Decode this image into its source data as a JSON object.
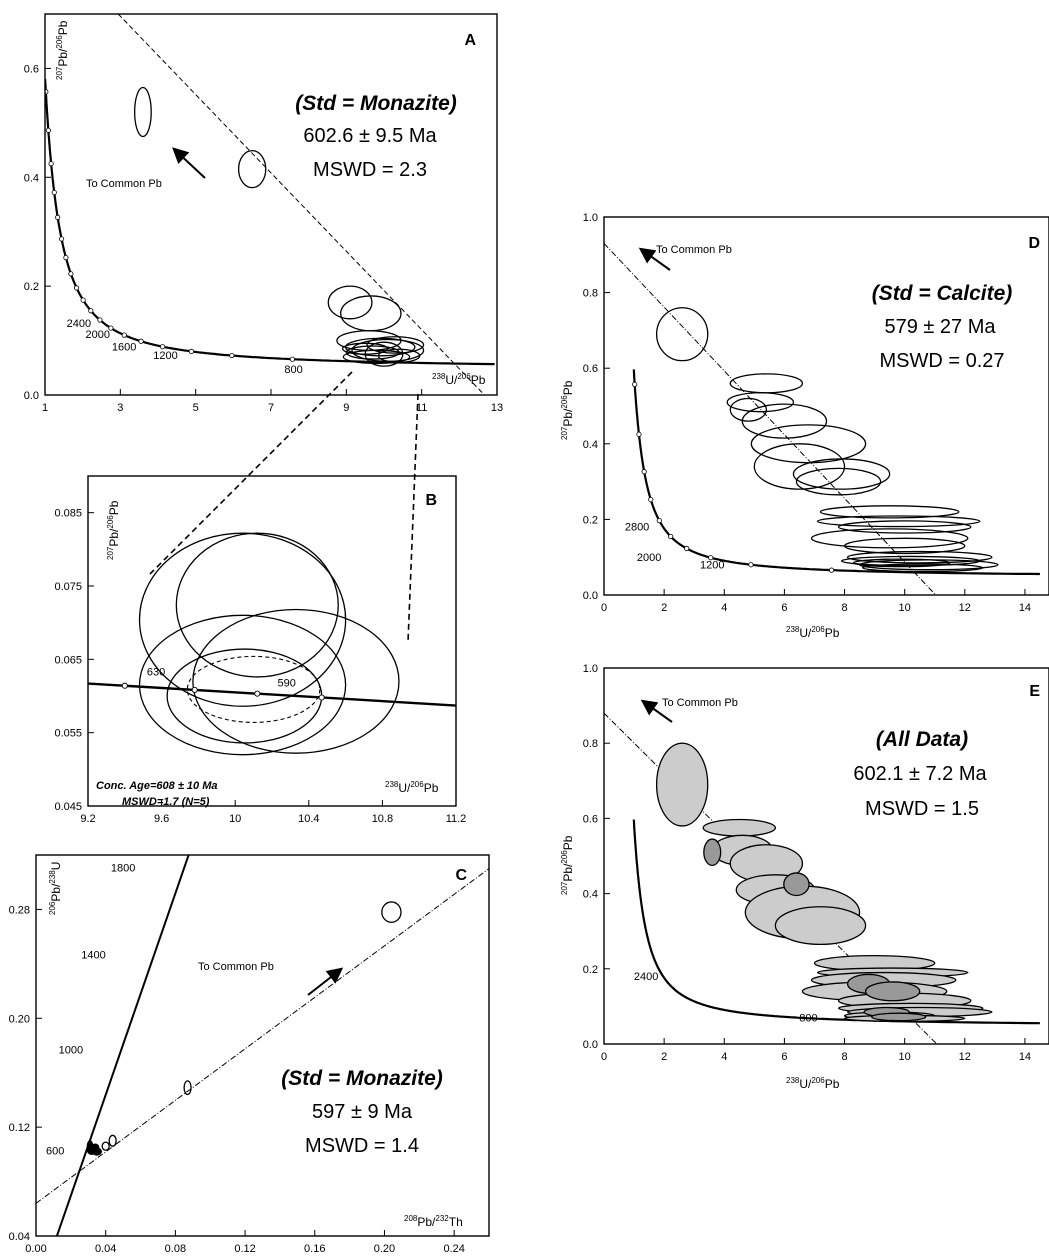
{
  "chart_data": [
    {
      "id": "A",
      "type": "scatter",
      "panel_label": "A",
      "xlim": [
        1,
        13
      ],
      "ylim": [
        0,
        0.7
      ],
      "xticks": [
        1,
        3,
        5,
        7,
        9,
        11,
        13
      ],
      "yticks": [
        0.0,
        0.2,
        0.4,
        0.6
      ],
      "xlabel_html": [
        "238",
        "U/",
        "206",
        "Pb"
      ],
      "ylabel_html": [
        "207",
        "Pb/",
        "206",
        "Pb"
      ],
      "standard": "(Std = Monazite)",
      "age": "602.6 ± 9.5 Ma",
      "mswd": "MSWD = 2.3",
      "common_pb_label": "To Common Pb",
      "concordia_labels": [
        {
          "text": "2400",
          "x": 1.9,
          "y": 0.125
        },
        {
          "text": "2000",
          "x": 2.4,
          "y": 0.105
        },
        {
          "text": "1600",
          "x": 3.1,
          "y": 0.082
        },
        {
          "text": "1200",
          "x": 4.2,
          "y": 0.066
        },
        {
          "text": "800",
          "x": 7.6,
          "y": 0.04
        }
      ],
      "regression": {
        "x0": 1,
        "y0": 0.84,
        "slope": -0.072
      },
      "ellipses": [
        {
          "x": 3.6,
          "y": 0.52,
          "rx": 0.22,
          "ry": 0.045,
          "fill": "none"
        },
        {
          "x": 6.5,
          "y": 0.415,
          "rx": 0.36,
          "ry": 0.034,
          "fill": "none"
        },
        {
          "x": 9.1,
          "y": 0.17,
          "rx": 0.58,
          "ry": 0.03,
          "fill": "none"
        },
        {
          "x": 9.65,
          "y": 0.15,
          "rx": 0.8,
          "ry": 0.032,
          "fill": "none"
        },
        {
          "x": 9.6,
          "y": 0.1,
          "rx": 0.85,
          "ry": 0.018,
          "fill": "none"
        },
        {
          "x": 9.9,
          "y": 0.088,
          "rx": 0.92,
          "ry": 0.016,
          "fill": "none"
        },
        {
          "x": 10.1,
          "y": 0.082,
          "rx": 0.95,
          "ry": 0.02,
          "fill": "none"
        },
        {
          "x": 9.7,
          "y": 0.078,
          "rx": 0.7,
          "ry": 0.012,
          "fill": "none"
        },
        {
          "x": 10.3,
          "y": 0.092,
          "rx": 0.75,
          "ry": 0.015,
          "fill": "none"
        },
        {
          "x": 9.8,
          "y": 0.07,
          "rx": 0.88,
          "ry": 0.012,
          "fill": "none"
        },
        {
          "x": 10.0,
          "y": 0.075,
          "rx": 0.5,
          "ry": 0.022,
          "fill": "none"
        },
        {
          "x": 9.5,
          "y": 0.085,
          "rx": 0.6,
          "ry": 0.01,
          "fill": "none"
        },
        {
          "x": 10.4,
          "y": 0.072,
          "rx": 0.55,
          "ry": 0.012,
          "fill": "none"
        }
      ]
    },
    {
      "id": "B",
      "type": "scatter",
      "panel_label": "B",
      "xlim": [
        9.2,
        11.2
      ],
      "ylim": [
        0.045,
        0.09
      ],
      "xticks": [
        9.2,
        9.6,
        10.0,
        10.4,
        10.8,
        11.2
      ],
      "yticks": [
        0.045,
        0.055,
        0.065,
        0.075,
        0.085
      ],
      "xlabel_html": [
        "238",
        "U/",
        "206",
        "Pb"
      ],
      "ylabel_html": [
        "207",
        "Pb/",
        "206",
        "Pb"
      ],
      "conc_age": "Conc. Age=608 ± 10 Ma",
      "conc_mswd": "MSWD=1.7 (N=5)",
      "concordia_labels": [
        {
          "text": "630",
          "x": 9.57,
          "y": 0.0628
        },
        {
          "text": "590",
          "x": 10.28,
          "y": 0.0613
        }
      ],
      "concordia_line": {
        "x0": 9.2,
        "y0": 0.0617,
        "x1": 11.2,
        "y1": 0.0587
      },
      "concordia_markers": [
        9.4,
        9.78,
        10.12,
        10.47
      ],
      "ellipses": [
        {
          "x": 10.04,
          "y": 0.0704,
          "rx": 0.56,
          "ry": 0.0118,
          "fill": "none"
        },
        {
          "x": 10.12,
          "y": 0.0724,
          "rx": 0.44,
          "ry": 0.0098,
          "fill": "none"
        },
        {
          "x": 10.04,
          "y": 0.0615,
          "rx": 0.56,
          "ry": 0.0095,
          "fill": "none"
        },
        {
          "x": 10.33,
          "y": 0.062,
          "rx": 0.56,
          "ry": 0.0098,
          "fill": "none"
        },
        {
          "x": 10.05,
          "y": 0.06,
          "rx": 0.42,
          "ry": 0.0064,
          "fill": "none"
        }
      ],
      "mean_ellipse": {
        "x": 10.1,
        "y": 0.0609,
        "rx": 0.36,
        "ry": 0.0045
      }
    },
    {
      "id": "C",
      "type": "scatter",
      "panel_label": "C",
      "xlim": [
        0.0,
        0.26
      ],
      "ylim": [
        0.04,
        0.32
      ],
      "xticks": [
        0.0,
        0.04,
        0.08,
        0.12,
        0.16,
        0.2,
        0.24
      ],
      "xtick_labels": [
        "0.00",
        "0.04",
        "0.08",
        "0.12",
        "0.16",
        "0.20",
        "0.24"
      ],
      "yticks": [
        0.04,
        0.12,
        0.2,
        0.28
      ],
      "ytick_labels": [
        "0.04",
        "0.12",
        "0.20",
        "0.28"
      ],
      "xlabel_html": [
        "208",
        "Pb/",
        "232",
        "Th"
      ],
      "ylabel_html": [
        "206",
        "Pb/",
        "238",
        "U"
      ],
      "standard": "(Std = Monazite)",
      "age": "597 ± 9 Ma",
      "mswd": "MSWD = 1.4",
      "common_pb_label": "To Common Pb",
      "concordia_labels": [
        {
          "text": "1800",
          "x": 0.05,
          "y": 0.308
        },
        {
          "text": "1400",
          "x": 0.033,
          "y": 0.244
        },
        {
          "text": "1000",
          "x": 0.02,
          "y": 0.174
        },
        {
          "text": "600",
          "x": 0.011,
          "y": 0.1
        }
      ],
      "concordia_line": {
        "x0": 0.012,
        "y0": 0.04,
        "x1": 0.093,
        "y1": 0.34
      },
      "regression": {
        "x0": 0.0,
        "y0": 0.064,
        "x1": 0.26,
        "y1": 0.31
      },
      "ellipses": [
        {
          "x": 0.204,
          "y": 0.278,
          "rx": 0.0055,
          "ry": 0.0075,
          "fill": "none"
        },
        {
          "x": 0.087,
          "y": 0.149,
          "rx": 0.002,
          "ry": 0.005,
          "fill": "none"
        },
        {
          "x": 0.044,
          "y": 0.11,
          "rx": 0.002,
          "ry": 0.004,
          "fill": "none"
        },
        {
          "x": 0.04,
          "y": 0.106,
          "rx": 0.002,
          "ry": 0.003,
          "fill": "none"
        },
        {
          "x": 0.032,
          "y": 0.103,
          "rx": 0.0025,
          "ry": 0.003,
          "fill": "#000"
        },
        {
          "x": 0.034,
          "y": 0.105,
          "rx": 0.002,
          "ry": 0.0025,
          "fill": "#000"
        },
        {
          "x": 0.035,
          "y": 0.102,
          "rx": 0.0025,
          "ry": 0.0025,
          "fill": "#000"
        },
        {
          "x": 0.031,
          "y": 0.106,
          "rx": 0.0015,
          "ry": 0.004,
          "fill": "#000"
        }
      ]
    },
    {
      "id": "D",
      "type": "scatter",
      "panel_label": "D",
      "xlim": [
        0,
        14.8
      ],
      "ylim": [
        0,
        1.0
      ],
      "xticks": [
        0,
        2,
        4,
        6,
        8,
        10,
        12,
        14
      ],
      "yticks": [
        0.0,
        0.2,
        0.4,
        0.6,
        0.8,
        1.0
      ],
      "ytick_labels": [
        "0.0",
        "0.2",
        "0.4",
        "0.6",
        "0.8",
        "1.0"
      ],
      "xlabel_html": [
        "238",
        "U/",
        "206",
        "Pb"
      ],
      "ylabel_html": [
        "207",
        "Pb/",
        "206",
        "Pb"
      ],
      "standard": "(Std = Calcite)",
      "age": "579 ± 27 Ma",
      "mswd": "MSWD = 0.27",
      "common_pb_label": "To Common Pb",
      "concordia_labels": [
        {
          "text": "2800",
          "x": 1.1,
          "y": 0.17
        },
        {
          "text": "2000",
          "x": 1.5,
          "y": 0.09
        },
        {
          "text": "1200",
          "x": 3.6,
          "y": 0.07
        }
      ],
      "regression": {
        "x0": 0,
        "y0": 0.93,
        "slope": -0.0843
      },
      "ellipses": [
        {
          "x": 2.6,
          "y": 0.69,
          "rx": 0.85,
          "ry": 0.07,
          "fill": "none"
        },
        {
          "x": 5.4,
          "y": 0.56,
          "rx": 1.2,
          "ry": 0.025,
          "fill": "none"
        },
        {
          "x": 5.2,
          "y": 0.51,
          "rx": 1.1,
          "ry": 0.025,
          "fill": "none"
        },
        {
          "x": 4.8,
          "y": 0.49,
          "rx": 0.6,
          "ry": 0.03,
          "fill": "none"
        },
        {
          "x": 6.0,
          "y": 0.46,
          "rx": 1.4,
          "ry": 0.045,
          "fill": "none"
        },
        {
          "x": 6.8,
          "y": 0.4,
          "rx": 1.9,
          "ry": 0.05,
          "fill": "none"
        },
        {
          "x": 6.5,
          "y": 0.34,
          "rx": 1.5,
          "ry": 0.06,
          "fill": "none"
        },
        {
          "x": 7.9,
          "y": 0.32,
          "rx": 1.6,
          "ry": 0.04,
          "fill": "none"
        },
        {
          "x": 7.8,
          "y": 0.3,
          "rx": 1.4,
          "ry": 0.035,
          "fill": "none"
        },
        {
          "x": 9.5,
          "y": 0.22,
          "rx": 2.3,
          "ry": 0.016,
          "fill": "none"
        },
        {
          "x": 9.8,
          "y": 0.195,
          "rx": 2.7,
          "ry": 0.014,
          "fill": "none"
        },
        {
          "x": 10.0,
          "y": 0.18,
          "rx": 2.2,
          "ry": 0.016,
          "fill": "none"
        },
        {
          "x": 9.5,
          "y": 0.15,
          "rx": 2.6,
          "ry": 0.025,
          "fill": "none"
        },
        {
          "x": 10.0,
          "y": 0.13,
          "rx": 2.0,
          "ry": 0.02,
          "fill": "none"
        },
        {
          "x": 10.5,
          "y": 0.1,
          "rx": 2.4,
          "ry": 0.015,
          "fill": "none"
        },
        {
          "x": 10.2,
          "y": 0.09,
          "rx": 2.3,
          "ry": 0.012,
          "fill": "none"
        },
        {
          "x": 10.8,
          "y": 0.08,
          "rx": 2.3,
          "ry": 0.013,
          "fill": "none"
        },
        {
          "x": 9.9,
          "y": 0.085,
          "rx": 1.6,
          "ry": 0.01,
          "fill": "none"
        },
        {
          "x": 10.6,
          "y": 0.072,
          "rx": 2.0,
          "ry": 0.01,
          "fill": "none"
        }
      ]
    },
    {
      "id": "E",
      "type": "scatter",
      "panel_label": "E",
      "xlim": [
        0,
        14.8
      ],
      "ylim": [
        0,
        1.0
      ],
      "xticks": [
        0,
        2,
        4,
        6,
        8,
        10,
        12,
        14
      ],
      "yticks": [
        0.0,
        0.2,
        0.4,
        0.6,
        0.8,
        1.0
      ],
      "ytick_labels": [
        "0.0",
        "0.2",
        "0.4",
        "0.6",
        "0.8",
        "1.0"
      ],
      "xlabel_html": [
        "238",
        "U/",
        "206",
        "Pb"
      ],
      "ylabel_html": [
        "207",
        "Pb/",
        "206",
        "Pb"
      ],
      "standard": "(All Data)",
      "age": "602.1 ± 7.2 Ma",
      "mswd": "MSWD = 1.5",
      "common_pb_label": "To Common Pb",
      "concordia_labels": [
        {
          "text": "2400",
          "x": 1.4,
          "y": 0.17
        },
        {
          "text": "800",
          "x": 6.8,
          "y": 0.06
        }
      ],
      "regression": {
        "x0": 0,
        "y0": 0.88,
        "slope": -0.0795
      },
      "ellipses": [
        {
          "x": 2.6,
          "y": 0.69,
          "rx": 0.85,
          "ry": 0.11,
          "fill": "#cccccc"
        },
        {
          "x": 4.5,
          "y": 0.575,
          "rx": 1.2,
          "ry": 0.022,
          "fill": "#cccccc"
        },
        {
          "x": 4.6,
          "y": 0.515,
          "rx": 1.0,
          "ry": 0.04,
          "fill": "#cccccc"
        },
        {
          "x": 5.4,
          "y": 0.48,
          "rx": 1.2,
          "ry": 0.05,
          "fill": "#cccccc"
        },
        {
          "x": 5.7,
          "y": 0.41,
          "rx": 1.3,
          "ry": 0.04,
          "fill": "#cccccc"
        },
        {
          "x": 6.6,
          "y": 0.35,
          "rx": 1.9,
          "ry": 0.07,
          "fill": "#cccccc"
        },
        {
          "x": 7.2,
          "y": 0.315,
          "rx": 1.5,
          "ry": 0.05,
          "fill": "#cccccc"
        },
        {
          "x": 9.0,
          "y": 0.215,
          "rx": 2.0,
          "ry": 0.02,
          "fill": "#cccccc"
        },
        {
          "x": 9.6,
          "y": 0.19,
          "rx": 2.5,
          "ry": 0.012,
          "fill": "#cccccc"
        },
        {
          "x": 9.3,
          "y": 0.17,
          "rx": 2.4,
          "ry": 0.02,
          "fill": "#cccccc"
        },
        {
          "x": 9.0,
          "y": 0.14,
          "rx": 2.4,
          "ry": 0.025,
          "fill": "#cccccc"
        },
        {
          "x": 10.0,
          "y": 0.115,
          "rx": 2.2,
          "ry": 0.02,
          "fill": "#cccccc"
        },
        {
          "x": 10.2,
          "y": 0.095,
          "rx": 2.4,
          "ry": 0.013,
          "fill": "#cccccc"
        },
        {
          "x": 10.5,
          "y": 0.085,
          "rx": 2.4,
          "ry": 0.012,
          "fill": "#cccccc"
        },
        {
          "x": 9.5,
          "y": 0.075,
          "rx": 1.5,
          "ry": 0.01,
          "fill": "#cccccc"
        },
        {
          "x": 10.0,
          "y": 0.068,
          "rx": 2.0,
          "ry": 0.008,
          "fill": "#cccccc"
        },
        {
          "x": 3.6,
          "y": 0.51,
          "rx": 0.28,
          "ry": 0.035,
          "fill": "#999999"
        },
        {
          "x": 6.4,
          "y": 0.425,
          "rx": 0.42,
          "ry": 0.03,
          "fill": "#999999"
        },
        {
          "x": 8.8,
          "y": 0.16,
          "rx": 0.7,
          "ry": 0.025,
          "fill": "#999999"
        },
        {
          "x": 9.6,
          "y": 0.14,
          "rx": 0.9,
          "ry": 0.025,
          "fill": "#999999"
        },
        {
          "x": 9.4,
          "y": 0.085,
          "rx": 0.75,
          "ry": 0.012,
          "fill": "#999999"
        },
        {
          "x": 9.8,
          "y": 0.072,
          "rx": 0.9,
          "ry": 0.01,
          "fill": "#999999"
        }
      ]
    }
  ]
}
